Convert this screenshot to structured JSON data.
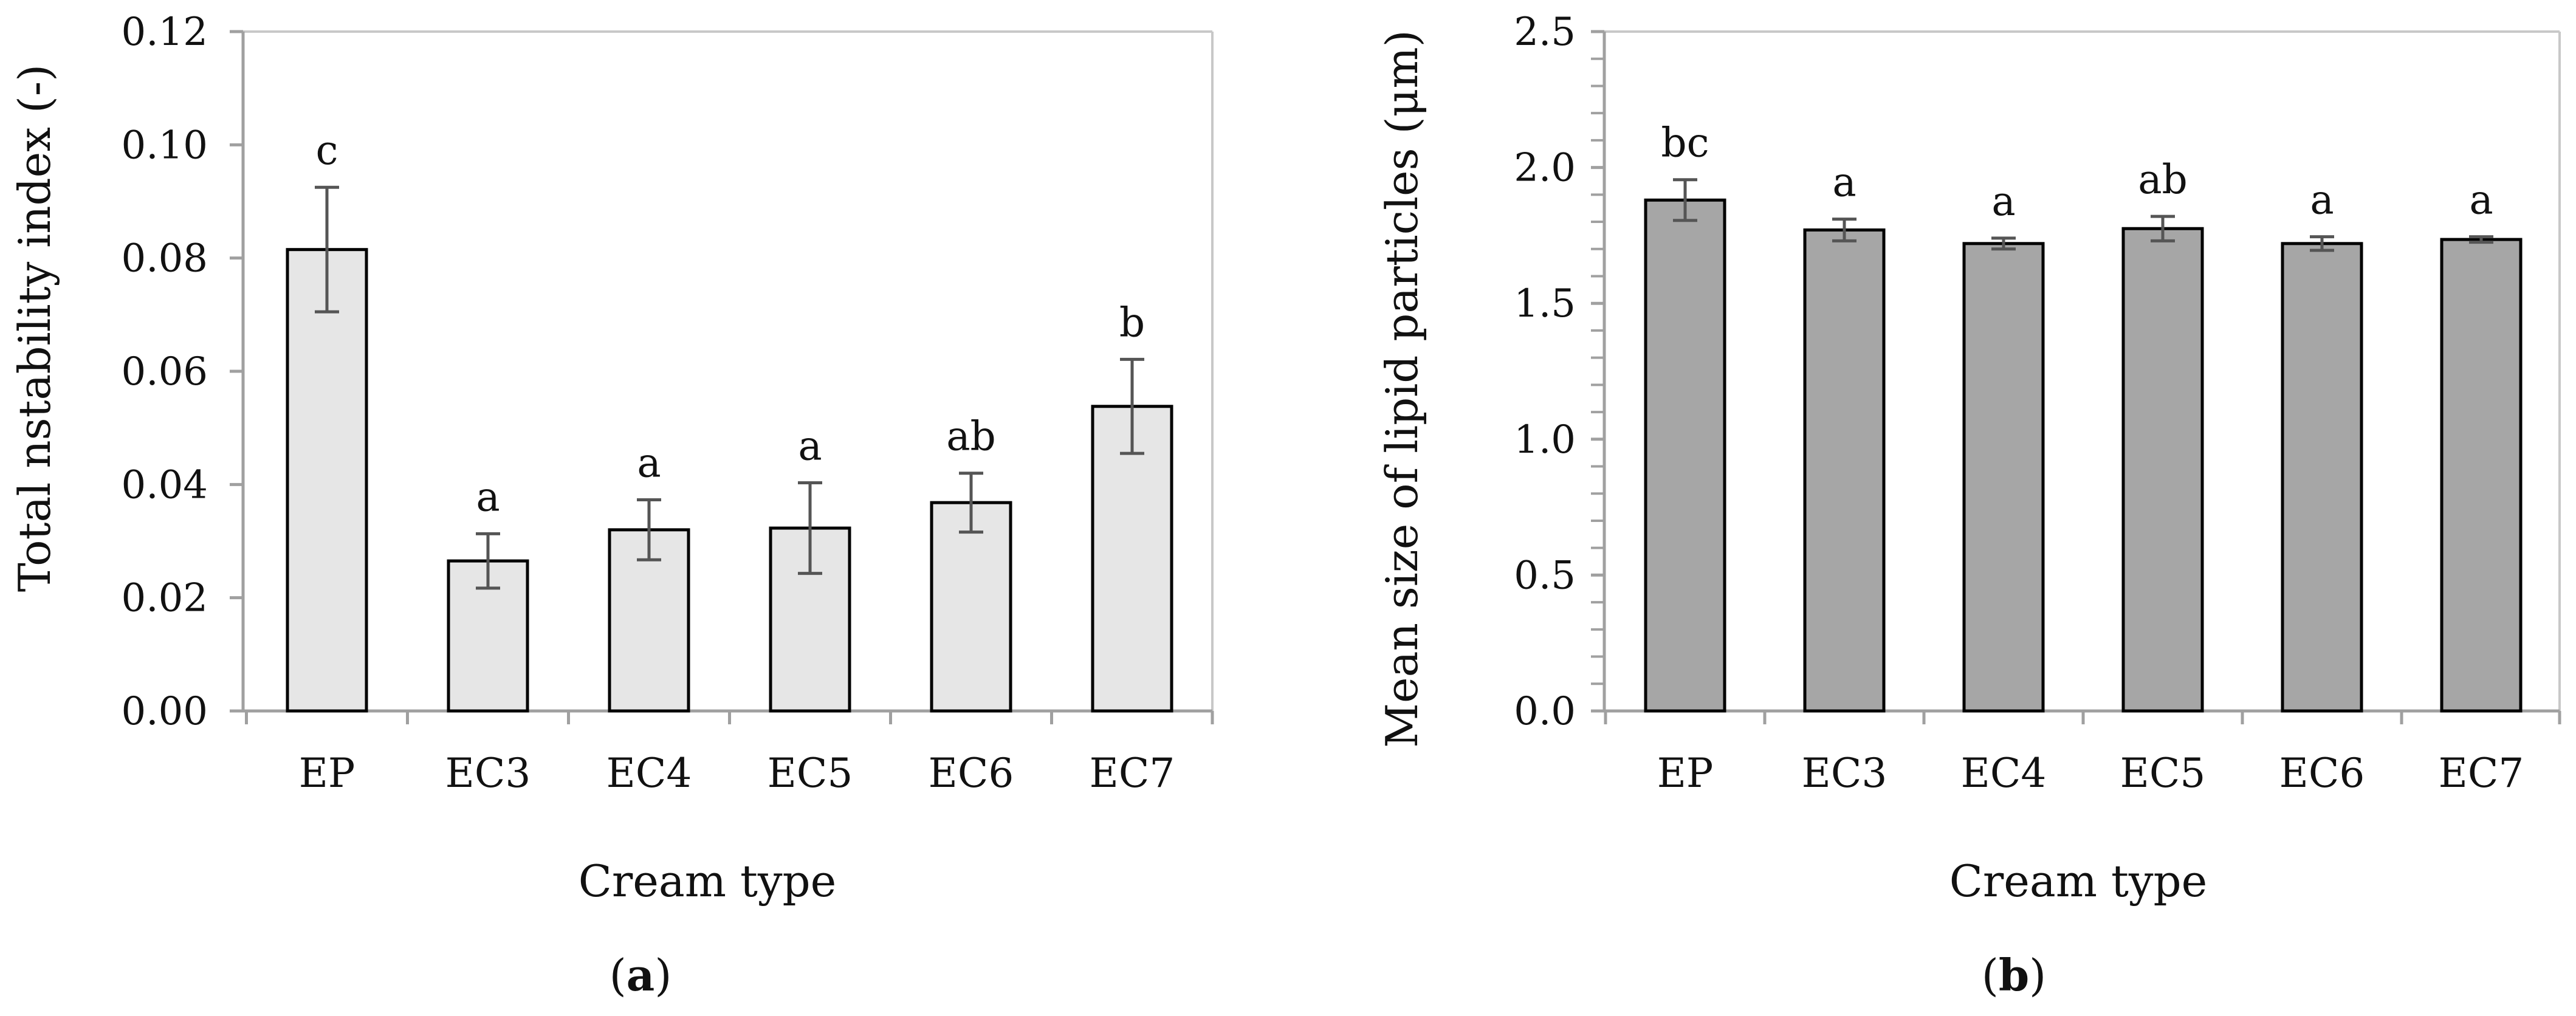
{
  "chart_data": [
    {
      "type": "bar",
      "panel_label": "a",
      "categories": [
        "EP",
        "EC3",
        "EC4",
        "EC5",
        "EC6",
        "EC7"
      ],
      "values": [
        0.0815,
        0.0265,
        0.032,
        0.0323,
        0.0368,
        0.0538
      ],
      "errors": [
        0.011,
        0.0048,
        0.0053,
        0.008,
        0.0052,
        0.0083
      ],
      "significance": [
        "c",
        "a",
        "a",
        "a",
        "ab",
        "b"
      ],
      "xlabel": "Cream type",
      "ylabel": "Total nstability index (-)",
      "ylim": [
        0,
        0.12
      ],
      "ytick_values": [
        0,
        0.02,
        0.04,
        0.06,
        0.08,
        0.1,
        0.12
      ],
      "ytick_labels": [
        "0.00",
        "0.02",
        "0.04",
        "0.06",
        "0.08",
        "0.10",
        "0.12"
      ],
      "minor_ticks": false,
      "bar_color": "#e6e6e6",
      "grid": false
    },
    {
      "type": "bar",
      "panel_label": "b",
      "categories": [
        "EP",
        "EC3",
        "EC4",
        "EC5",
        "EC6",
        "EC7"
      ],
      "values": [
        1.88,
        1.77,
        1.72,
        1.775,
        1.72,
        1.735
      ],
      "errors": [
        0.075,
        0.04,
        0.02,
        0.045,
        0.025,
        0.01
      ],
      "significance": [
        "bc",
        "a",
        "a",
        "ab",
        "a",
        "a"
      ],
      "xlabel": "Cream type",
      "ylabel": "Mean size of lipid particles (μm)",
      "ylim": [
        0,
        2.5
      ],
      "ytick_values": [
        0,
        0.5,
        1.0,
        1.5,
        2.0,
        2.5
      ],
      "ytick_labels": [
        "0.0",
        "0.5",
        "1.0",
        "1.5",
        "2.0",
        "2.5"
      ],
      "minor_ticks": true,
      "bar_color": "#a6a6a6",
      "grid": false
    }
  ]
}
